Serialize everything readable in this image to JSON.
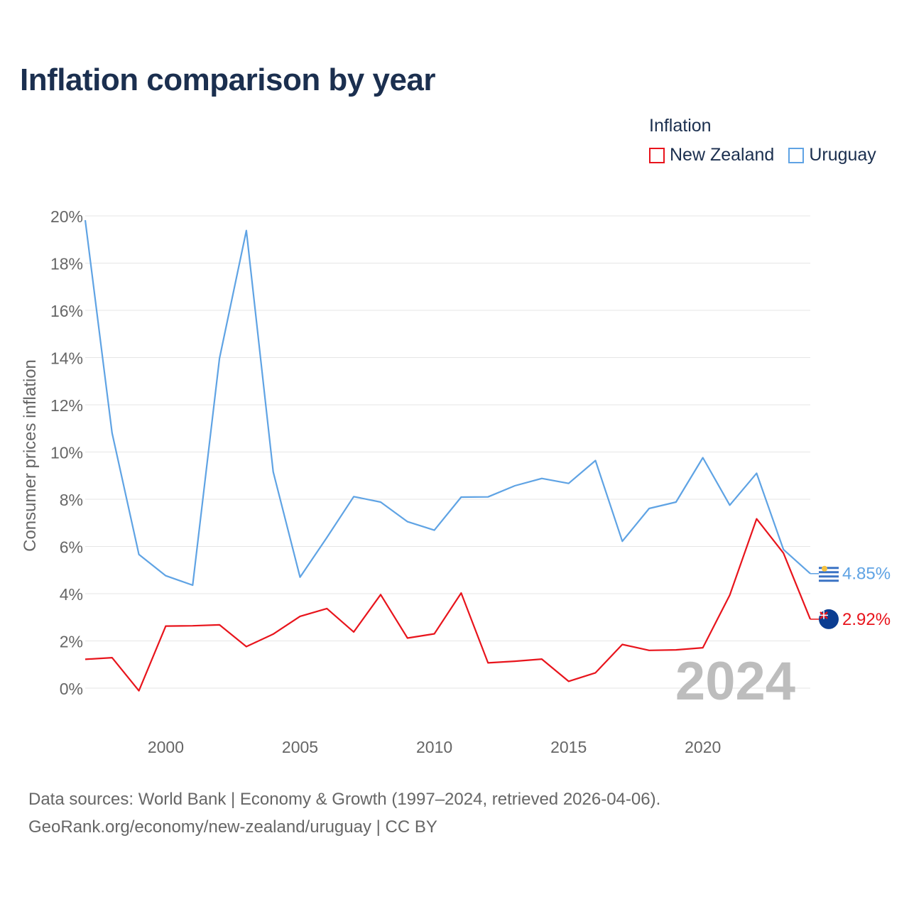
{
  "title": "Inflation comparison by year",
  "legend": {
    "title": "Inflation",
    "items": [
      {
        "label": "New Zealand",
        "color": "#e8141c"
      },
      {
        "label": "Uruguay",
        "color": "#5fa3e4"
      }
    ]
  },
  "footer": {
    "line1": "Data sources: World Bank | Economy & Growth (1997–2024, retrieved 2026-04-06).",
    "line2": "GeoRank.org/economy/new-zealand/uruguay | CC BY"
  },
  "chart_data": {
    "type": "line",
    "title": "Inflation comparison by year",
    "ylabel": "Consumer prices inflation",
    "xlabel": "",
    "x": [
      1997,
      1998,
      1999,
      2000,
      2001,
      2002,
      2003,
      2004,
      2005,
      2006,
      2007,
      2008,
      2009,
      2010,
      2011,
      2012,
      2013,
      2014,
      2015,
      2016,
      2017,
      2018,
      2019,
      2020,
      2021,
      2022,
      2023,
      2024
    ],
    "xlim": [
      1997,
      2024
    ],
    "ylim": [
      -1.2,
      20
    ],
    "x_ticks": [
      2000,
      2005,
      2010,
      2015,
      2020
    ],
    "x_tick_labels": [
      "2000",
      "2005",
      "2010",
      "2015",
      "2020"
    ],
    "y_ticks": [
      0,
      2,
      4,
      6,
      8,
      10,
      12,
      14,
      16,
      18,
      20
    ],
    "y_tick_labels": [
      "0%",
      "2%",
      "4%",
      "6%",
      "8%",
      "10%",
      "12%",
      "14%",
      "16%",
      "18%",
      "20%"
    ],
    "grid": true,
    "year_watermark": "2024",
    "series": [
      {
        "name": "New Zealand",
        "color": "#e8141c",
        "end_label": "2.92%",
        "flag_icon": "new-zealand-flag-icon",
        "values": [
          1.22,
          1.29,
          -0.11,
          2.63,
          2.64,
          2.68,
          1.76,
          2.29,
          3.04,
          3.37,
          2.38,
          3.96,
          2.12,
          2.3,
          4.03,
          1.07,
          1.14,
          1.23,
          0.29,
          0.65,
          1.85,
          1.6,
          1.62,
          1.71,
          3.94,
          7.17,
          5.72,
          2.92
        ]
      },
      {
        "name": "Uruguay",
        "color": "#5fa3e4",
        "end_label": "4.85%",
        "flag_icon": "uruguay-flag-icon",
        "values": [
          19.82,
          10.81,
          5.66,
          4.76,
          4.36,
          13.97,
          19.38,
          9.16,
          4.7,
          6.38,
          8.11,
          7.88,
          7.05,
          6.69,
          8.09,
          8.1,
          8.57,
          8.88,
          8.67,
          9.64,
          6.22,
          7.61,
          7.88,
          9.76,
          7.75,
          9.1,
          5.87,
          4.85
        ]
      }
    ]
  }
}
